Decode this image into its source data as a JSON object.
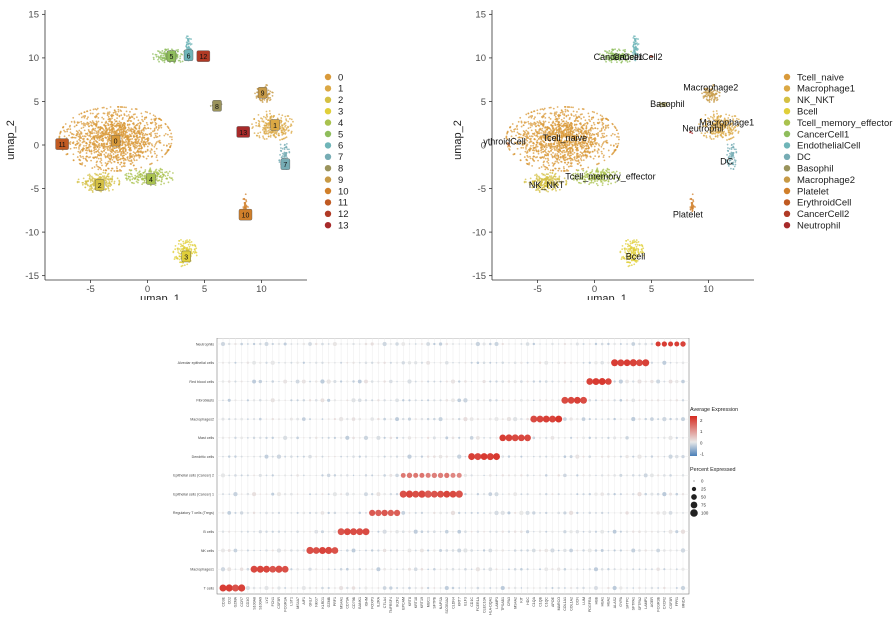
{
  "colors": {
    "c0": "#d99a3a",
    "c1": "#dba844",
    "c2": "#d4c044",
    "c3": "#e0cf3a",
    "c4": "#a9c24e",
    "c5": "#8fbd5c",
    "c6": "#6fb5b8",
    "c7": "#76acb4",
    "c8": "#9a935c",
    "c9": "#c79a46",
    "c10": "#d07f2a",
    "c11": "#c05a22",
    "c12": "#b03a25",
    "c13": "#a72a2a",
    "low": "#4a7fb8",
    "mid": "#e8e8e8",
    "high": "#d62a20"
  },
  "chart_data": [
    {
      "type": "scatter",
      "title": "",
      "xlabel": "umap_1",
      "ylabel": "umap_2",
      "xlim": [
        -9,
        14
      ],
      "ylim": [
        -15.5,
        15.5
      ],
      "xticks": [
        -5,
        0,
        5,
        10
      ],
      "yticks": [
        -15,
        -10,
        -5,
        0,
        5,
        10,
        15
      ],
      "legend": [
        "0",
        "1",
        "2",
        "3",
        "4",
        "5",
        "6",
        "7",
        "8",
        "9",
        "10",
        "11",
        "12",
        "13"
      ],
      "legend_position": "right",
      "cluster_labels": [
        {
          "label": "0",
          "x": -2.8,
          "y": 0.5,
          "color": "c0"
        },
        {
          "label": "1",
          "x": 11.2,
          "y": 2.3,
          "color": "c1"
        },
        {
          "label": "2",
          "x": -4.2,
          "y": -4.6,
          "color": "c2"
        },
        {
          "label": "3",
          "x": 3.4,
          "y": -12.8,
          "color": "c3"
        },
        {
          "label": "4",
          "x": 0.3,
          "y": -3.9,
          "color": "c4"
        },
        {
          "label": "5",
          "x": 2.1,
          "y": 10.2,
          "color": "c5"
        },
        {
          "label": "6",
          "x": 3.6,
          "y": 10.3,
          "color": "c6"
        },
        {
          "label": "7",
          "x": 12.1,
          "y": -2.2,
          "color": "c7"
        },
        {
          "label": "8",
          "x": 6.1,
          "y": 4.5,
          "color": "c8"
        },
        {
          "label": "9",
          "x": 10.1,
          "y": 6.0,
          "color": "c9"
        },
        {
          "label": "10",
          "x": 8.6,
          "y": -8.0,
          "color": "c10"
        },
        {
          "label": "11",
          "x": -7.5,
          "y": 0.1,
          "color": "c11"
        },
        {
          "label": "12",
          "x": 4.9,
          "y": 10.2,
          "color": "c12"
        },
        {
          "label": "13",
          "x": 8.4,
          "y": 1.5,
          "color": "c13"
        }
      ]
    },
    {
      "type": "scatter",
      "title": "",
      "xlabel": "umap_1",
      "ylabel": "umap_2",
      "xlim": [
        -9,
        14
      ],
      "ylim": [
        -15.5,
        15.5
      ],
      "xticks": [
        -5,
        0,
        5,
        10
      ],
      "yticks": [
        -15,
        -10,
        -5,
        0,
        5,
        10,
        15
      ],
      "legend": [
        "Tcell_naive",
        "Macrophage1",
        "NK_NKT",
        "Bcell",
        "Tcell_memory_effector",
        "CancerCell1",
        "EndothelialCell",
        "DC",
        "Basophil",
        "Macrophage2",
        "Platelet",
        "ErythroidCell",
        "CancerCell2",
        "Neutrophil"
      ],
      "legend_position": "right",
      "cluster_labels": [
        {
          "label": "Tcell_naive",
          "x": -2.6,
          "y": 0.8
        },
        {
          "label": "ythroidCell",
          "x": -7.9,
          "y": 0.4
        },
        {
          "label": "Tcell_memory_effector",
          "x": 1.4,
          "y": -3.6
        },
        {
          "label": "NK_NKT",
          "x": -4.2,
          "y": -4.6
        },
        {
          "label": "CancerCell1",
          "x": 2.1,
          "y": 10.1
        },
        {
          "label": "CancerCell2",
          "x": 3.8,
          "y": 10.1
        },
        {
          "label": "Macrophage2",
          "x": 10.2,
          "y": 6.6
        },
        {
          "label": "Basophil",
          "x": 6.4,
          "y": 4.7
        },
        {
          "label": "Macrophage1",
          "x": 11.6,
          "y": 2.6
        },
        {
          "label": "Neutrophil",
          "x": 9.5,
          "y": 1.9
        },
        {
          "label": "DC",
          "x": 11.6,
          "y": -1.9
        },
        {
          "label": "Platelet",
          "x": 8.2,
          "y": -8.0
        },
        {
          "label": "Bcell",
          "x": 3.6,
          "y": -12.8
        }
      ]
    },
    {
      "type": "dot",
      "title": "",
      "xlabel": "",
      "ylabel": "",
      "y_categories": [
        "T cells",
        "Macrophages1",
        "NK cells",
        "B cells",
        "Regulatory T cells (Tregs)",
        "Epithelial cells (Cancer) 1",
        "Epithelial cells (Cancer) 2",
        "Dendritic cells",
        "Mast cells",
        "Macrophages2",
        "Fibroblasts",
        "Red blood cells",
        "Alveolar epithelial cells",
        "Neutrophils"
      ],
      "x_genes": [
        "CD3E",
        "CD2",
        "GZMA",
        "CCR7",
        "CD3G",
        "S100A8",
        "S100A9",
        "LYZ",
        "FCN1",
        "CSF3R",
        "FCGR3A",
        "LST1",
        "MS4A7",
        "AIF1",
        "GNLY",
        "NKG7",
        "KLRD1",
        "GZMB",
        "PRF1",
        "MS4A1",
        "CD79A",
        "CD79B",
        "BANK1",
        "IGHM",
        "FOXP3",
        "IL2RA",
        "CTLA4",
        "TNFRSF4",
        "IKZF2",
        "EPCAM",
        "KRT8",
        "KRT18",
        "KRT19",
        "MUC1",
        "SFTPB",
        "NAPSA",
        "SCGB3A2",
        "CLDN4",
        "KRT7",
        "ELF3",
        "CD1C",
        "FCER1A",
        "CLEC10A",
        "HLA-DQA1",
        "LAMP3",
        "TPSAB1",
        "CPA3",
        "MS4A2",
        "KIT",
        "HDC",
        "C1QA",
        "C1QB",
        "C1QC",
        "APOE",
        "MARCO",
        "COL1A1",
        "COL1A2",
        "DCN",
        "LUM",
        "PDGFRA",
        "HBB",
        "HBA1",
        "HBA2",
        "ALAS2",
        "GYPA",
        "SFTPC",
        "SFTPA1",
        "SFTPA2",
        "LAMP1",
        "AGER",
        "FCGR3B",
        "CXCR2",
        "CSF3R",
        "FPR1",
        "MNDA"
      ],
      "color_legend": {
        "title": "Average Expression",
        "ticks": [
          2,
          1,
          0,
          -1
        ],
        "range": [
          -1.2,
          2.4
        ]
      },
      "size_legend": {
        "title": "Percent Expressed",
        "ticks": [
          0,
          25,
          50,
          75,
          100
        ]
      },
      "blocks": [
        {
          "row": 0,
          "genes": [
            0,
            1,
            2,
            3
          ],
          "expr": 2.2,
          "pct": 92
        },
        {
          "row": 1,
          "genes": [
            5,
            6,
            7,
            8,
            9,
            10
          ],
          "expr": 2.1,
          "pct": 88
        },
        {
          "row": 2,
          "genes": [
            14,
            15,
            16,
            17,
            18
          ],
          "expr": 2.2,
          "pct": 88
        },
        {
          "row": 3,
          "genes": [
            19,
            20,
            21,
            22,
            23
          ],
          "expr": 2.2,
          "pct": 85
        },
        {
          "row": 4,
          "genes": [
            24,
            25,
            26,
            27,
            28
          ],
          "expr": 2.0,
          "pct": 72
        },
        {
          "row": 5,
          "genes": [
            29,
            30,
            31,
            32,
            33,
            34,
            35,
            36,
            37,
            38
          ],
          "expr": 2.1,
          "pct": 90
        },
        {
          "row": 6,
          "genes": [
            29,
            30,
            31,
            32,
            33,
            34,
            35,
            36,
            37,
            38
          ],
          "expr": 1.5,
          "pct": 45
        },
        {
          "row": 7,
          "genes": [
            40,
            41,
            42,
            43,
            44
          ],
          "expr": 2.3,
          "pct": 85
        },
        {
          "row": 8,
          "genes": [
            45,
            46,
            47,
            48,
            49
          ],
          "expr": 2.3,
          "pct": 82
        },
        {
          "row": 9,
          "genes": [
            50,
            51,
            52,
            53,
            54
          ],
          "expr": 2.3,
          "pct": 88
        },
        {
          "row": 10,
          "genes": [
            55,
            56,
            57,
            58
          ],
          "expr": 2.2,
          "pct": 85
        },
        {
          "row": 11,
          "genes": [
            59,
            60,
            61,
            62
          ],
          "expr": 2.3,
          "pct": 82
        },
        {
          "row": 12,
          "genes": [
            63,
            64,
            65,
            66,
            67,
            68
          ],
          "expr": 2.2,
          "pct": 88
        },
        {
          "row": 13,
          "genes": [
            70,
            71,
            72,
            73,
            74
          ],
          "expr": 2.3,
          "pct": 45
        }
      ]
    }
  ]
}
